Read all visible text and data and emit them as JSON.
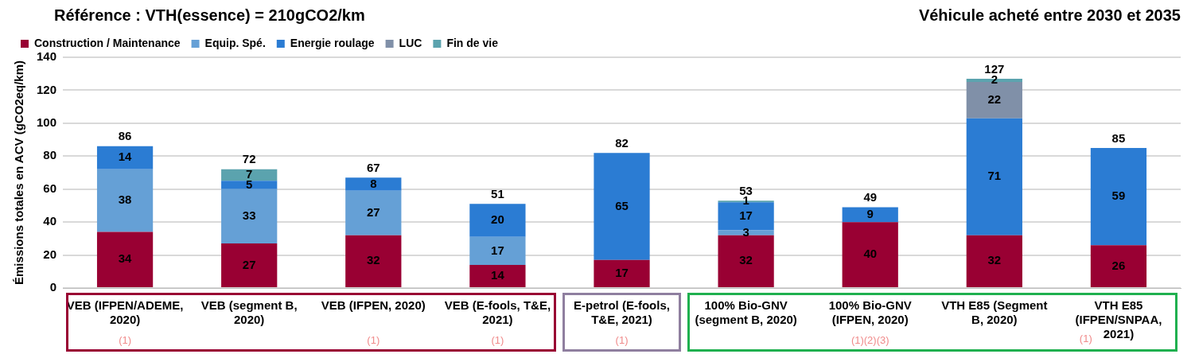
{
  "chart_data": {
    "type": "bar",
    "title": "Référence : VTH(essence) = 210gCO2/km",
    "subtitle": "Véhicule acheté entre 2030 et 2035",
    "ylabel": "Émissions totales en ACV (gCO2eq/km)",
    "categories": [
      "VEB (IFPEN/ADEME, 2020)",
      "VEB (segment B, 2020)",
      "VEB (IFPEN, 2020)",
      "VEB (E-fools, T&E, 2021)",
      "E-petrol (E-fools, T&E, 2021)",
      "100% Bio-GNV (segment B, 2020)",
      "100% Bio-GNV (IFPEN, 2020)",
      "VTH E85 (Segment B, 2020)",
      "VTH E85 (IFPEN/SNPAA, 2021)"
    ],
    "stacked": true,
    "data_labels": true,
    "totals": [
      "86",
      "72",
      "67",
      "51",
      "82",
      "53",
      "49",
      "127",
      "85"
    ],
    "series": [
      {
        "name": "Construction / Maintenance",
        "color": "#990033",
        "values": [
          34,
          27,
          32,
          14,
          17,
          32,
          40,
          32,
          26
        ]
      },
      {
        "name": "Equip. Spé.",
        "color": "#65a0d6",
        "values": [
          38,
          33,
          27,
          17,
          null,
          3,
          null,
          null,
          null
        ]
      },
      {
        "name": "Energie roulage",
        "color": "#2b7cd3",
        "values": [
          14,
          5,
          8,
          20,
          65,
          17,
          9,
          71,
          59
        ]
      },
      {
        "name": "LUC",
        "color": "#8090a8",
        "values": [
          null,
          null,
          null,
          null,
          null,
          null,
          null,
          22,
          null
        ]
      },
      {
        "name": "Fin de vie",
        "color": "#5ba3ae",
        "values": [
          null,
          7,
          null,
          null,
          null,
          1,
          null,
          2,
          null
        ]
      }
    ],
    "ylim": [
      0,
      140
    ],
    "yticks": [
      0,
      20,
      40,
      60,
      80,
      100,
      120,
      140
    ],
    "grid": "y",
    "legend": "top",
    "annotations": [
      "(1)",
      "(1)",
      "(1)",
      "(1)",
      "(1)(2)(3)",
      "(1)"
    ]
  }
}
